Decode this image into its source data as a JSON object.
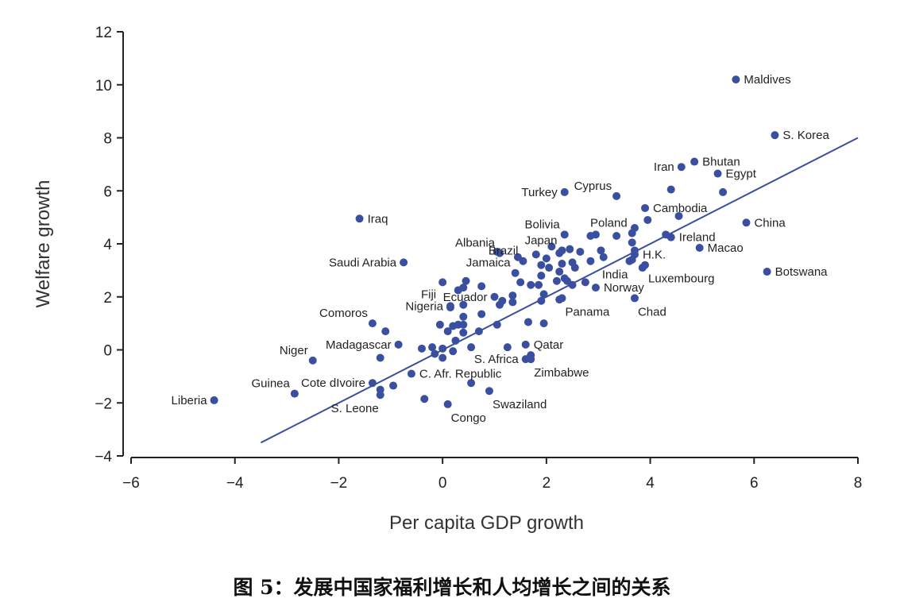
{
  "caption": "图 5：发展中国家福利增长和人均增长之间的关系",
  "chart_data": {
    "type": "scatter",
    "xlabel": "Per capita GDP growth",
    "ylabel": "Welfare growth",
    "xlim": [
      -6,
      8
    ],
    "ylim": [
      -4,
      12
    ],
    "x_ticks": [
      {
        "value": -6,
        "label": "−6"
      },
      {
        "value": -4,
        "label": "−4"
      },
      {
        "value": -2,
        "label": "−2"
      },
      {
        "value": 0,
        "label": "0"
      },
      {
        "value": 2,
        "label": "2"
      },
      {
        "value": 4,
        "label": "4"
      },
      {
        "value": 6,
        "label": "6"
      },
      {
        "value": 8,
        "label": "8"
      }
    ],
    "y_ticks": [
      {
        "value": -4,
        "label": "−4"
      },
      {
        "value": -2,
        "label": "−2"
      },
      {
        "value": 0,
        "label": "0"
      },
      {
        "value": 2,
        "label": "2"
      },
      {
        "value": 4,
        "label": "4"
      },
      {
        "value": 6,
        "label": "6"
      },
      {
        "value": 8,
        "label": "8"
      },
      {
        "value": 10,
        "label": "10"
      },
      {
        "value": 12,
        "label": "12"
      }
    ],
    "grid": false,
    "color": "#3a4fa0",
    "fit_line": {
      "x1": -3.5,
      "y1": -3.5,
      "x2": 8.0,
      "y2": 8.0
    },
    "labeled_points": [
      {
        "name": "Maldives",
        "x": 5.65,
        "y": 10.2,
        "anchor": "start"
      },
      {
        "name": "S. Korea",
        "x": 6.4,
        "y": 8.1,
        "anchor": "start"
      },
      {
        "name": "Iran",
        "x": 4.6,
        "y": 6.9,
        "anchor": "end"
      },
      {
        "name": "Bhutan",
        "x": 4.85,
        "y": 7.1,
        "anchor": "start"
      },
      {
        "name": "Egypt",
        "x": 5.3,
        "y": 6.65,
        "anchor": "start"
      },
      {
        "name": "Cyprus",
        "x": 3.35,
        "y": 5.8,
        "anchor": "end-above"
      },
      {
        "name": "Turkey",
        "x": 2.35,
        "y": 5.95,
        "anchor": "end"
      },
      {
        "name": "Cambodia",
        "x": 3.9,
        "y": 5.35,
        "anchor": "start"
      },
      {
        "name": "Iraq",
        "x": -1.6,
        "y": 4.95,
        "anchor": "start"
      },
      {
        "name": "Bolivia",
        "x": 2.35,
        "y": 4.35,
        "anchor": "end-above"
      },
      {
        "name": "Poland",
        "x": 3.65,
        "y": 4.4,
        "anchor": "end-above"
      },
      {
        "name": "China",
        "x": 5.85,
        "y": 4.8,
        "anchor": "start"
      },
      {
        "name": "Japan",
        "x": 2.3,
        "y": 3.75,
        "anchor": "end-above"
      },
      {
        "name": "Ireland",
        "x": 4.4,
        "y": 4.25,
        "anchor": "start"
      },
      {
        "name": "Albania",
        "x": 1.1,
        "y": 3.65,
        "anchor": "end-above"
      },
      {
        "name": "Brazil",
        "x": 1.55,
        "y": 3.35,
        "anchor": "end-above"
      },
      {
        "name": "Macao",
        "x": 4.95,
        "y": 3.85,
        "anchor": "start"
      },
      {
        "name": "H.K.",
        "x": 3.7,
        "y": 3.6,
        "anchor": "start"
      },
      {
        "name": "Saudi Arabia",
        "x": -0.75,
        "y": 3.3,
        "anchor": "end"
      },
      {
        "name": "India",
        "x": 3.6,
        "y": 3.35,
        "anchor": "below-end"
      },
      {
        "name": "Luxembourg",
        "x": 3.9,
        "y": 3.2,
        "anchor": "below-start"
      },
      {
        "name": "Botswana",
        "x": 6.25,
        "y": 2.95,
        "anchor": "start"
      },
      {
        "name": "Jamaica",
        "x": 1.4,
        "y": 2.9,
        "anchor": "end-above"
      },
      {
        "name": "Norway",
        "x": 2.95,
        "y": 2.35,
        "anchor": "start"
      },
      {
        "name": "Fiji",
        "x": 0.0,
        "y": 2.55,
        "anchor": "end-below"
      },
      {
        "name": "Ecuador",
        "x": 1.0,
        "y": 2.0,
        "anchor": "end"
      },
      {
        "name": "Chad",
        "x": 3.7,
        "y": 1.95,
        "anchor": "below-start"
      },
      {
        "name": "Panama",
        "x": 2.3,
        "y": 1.95,
        "anchor": "below-start"
      },
      {
        "name": "Nigeria",
        "x": 0.15,
        "y": 1.65,
        "anchor": "end"
      },
      {
        "name": "Comoros",
        "x": -1.35,
        "y": 1.0,
        "anchor": "end-above"
      },
      {
        "name": "Qatar",
        "x": 1.6,
        "y": 0.2,
        "anchor": "start"
      },
      {
        "name": "Madagascar",
        "x": -0.85,
        "y": 0.2,
        "anchor": "end"
      },
      {
        "name": "S. Africa",
        "x": 1.6,
        "y": -0.35,
        "anchor": "end"
      },
      {
        "name": "Niger",
        "x": -2.5,
        "y": -0.4,
        "anchor": "end-above"
      },
      {
        "name": "Zimbabwe",
        "x": 1.7,
        "y": -0.35,
        "anchor": "below-start"
      },
      {
        "name": "C. Afr. Republic",
        "x": -0.6,
        "y": -0.9,
        "anchor": "start"
      },
      {
        "name": "Cote dIvoire",
        "x": -1.35,
        "y": -1.25,
        "anchor": "end"
      },
      {
        "name": "Guinea",
        "x": -2.85,
        "y": -1.65,
        "anchor": "end-above"
      },
      {
        "name": "Swaziland",
        "x": 0.9,
        "y": -1.55,
        "anchor": "below-start"
      },
      {
        "name": "Liberia",
        "x": -4.4,
        "y": -1.9,
        "anchor": "end"
      },
      {
        "name": "S. Leone",
        "x": -1.2,
        "y": -1.7,
        "anchor": "below-end"
      },
      {
        "name": "Congo",
        "x": 0.1,
        "y": -2.05,
        "anchor": "below-start"
      }
    ],
    "unlabeled_points": [
      [
        4.4,
        6.05
      ],
      [
        5.4,
        5.95
      ],
      [
        4.55,
        5.05
      ],
      [
        3.95,
        4.9
      ],
      [
        3.7,
        4.6
      ],
      [
        2.95,
        4.35
      ],
      [
        3.35,
        4.3
      ],
      [
        2.85,
        4.3
      ],
      [
        4.3,
        4.35
      ],
      [
        3.65,
        4.05
      ],
      [
        1.05,
        3.7
      ],
      [
        2.1,
        3.9
      ],
      [
        2.25,
        3.65
      ],
      [
        2.45,
        3.8
      ],
      [
        2.65,
        3.7
      ],
      [
        1.45,
        3.5
      ],
      [
        1.8,
        3.6
      ],
      [
        2.0,
        3.45
      ],
      [
        3.05,
        3.75
      ],
      [
        3.1,
        3.5
      ],
      [
        3.7,
        3.75
      ],
      [
        3.65,
        3.4
      ],
      [
        1.9,
        3.2
      ],
      [
        2.05,
        3.1
      ],
      [
        2.3,
        3.25
      ],
      [
        2.5,
        3.3
      ],
      [
        2.55,
        3.1
      ],
      [
        2.85,
        3.35
      ],
      [
        2.25,
        2.95
      ],
      [
        1.9,
        2.8
      ],
      [
        3.85,
        3.1
      ],
      [
        2.4,
        2.6
      ],
      [
        2.5,
        2.45
      ],
      [
        2.75,
        2.55
      ],
      [
        2.2,
        2.6
      ],
      [
        1.5,
        2.55
      ],
      [
        1.7,
        2.45
      ],
      [
        1.85,
        2.45
      ],
      [
        2.35,
        2.7
      ],
      [
        0.45,
        2.6
      ],
      [
        0.75,
        2.4
      ],
      [
        0.4,
        2.35
      ],
      [
        0.3,
        2.25
      ],
      [
        1.35,
        2.05
      ],
      [
        1.35,
        1.8
      ],
      [
        1.1,
        1.7
      ],
      [
        1.15,
        1.85
      ],
      [
        0.4,
        1.7
      ],
      [
        1.95,
        2.1
      ],
      [
        2.25,
        1.9
      ],
      [
        1.9,
        1.85
      ],
      [
        0.15,
        1.6
      ],
      [
        0.75,
        1.35
      ],
      [
        0.4,
        1.25
      ],
      [
        1.65,
        1.05
      ],
      [
        1.95,
        1.0
      ],
      [
        1.05,
        0.95
      ],
      [
        0.2,
        0.9
      ],
      [
        0.3,
        0.95
      ],
      [
        0.4,
        0.95
      ],
      [
        -0.05,
        0.95
      ],
      [
        0.7,
        0.7
      ],
      [
        0.1,
        0.7
      ],
      [
        0.4,
        0.65
      ],
      [
        -1.1,
        0.7
      ],
      [
        0.25,
        0.35
      ],
      [
        0.55,
        0.1
      ],
      [
        1.25,
        0.1
      ],
      [
        -0.2,
        0.1
      ],
      [
        -0.4,
        0.05
      ],
      [
        0.0,
        0.05
      ],
      [
        0.2,
        -0.05
      ],
      [
        -0.15,
        -0.15
      ],
      [
        0.0,
        -0.3
      ],
      [
        1.7,
        -0.2
      ],
      [
        -1.2,
        -0.3
      ],
      [
        -0.95,
        -1.35
      ],
      [
        -1.2,
        -1.5
      ],
      [
        -0.35,
        -1.85
      ],
      [
        0.55,
        -1.25
      ]
    ]
  }
}
